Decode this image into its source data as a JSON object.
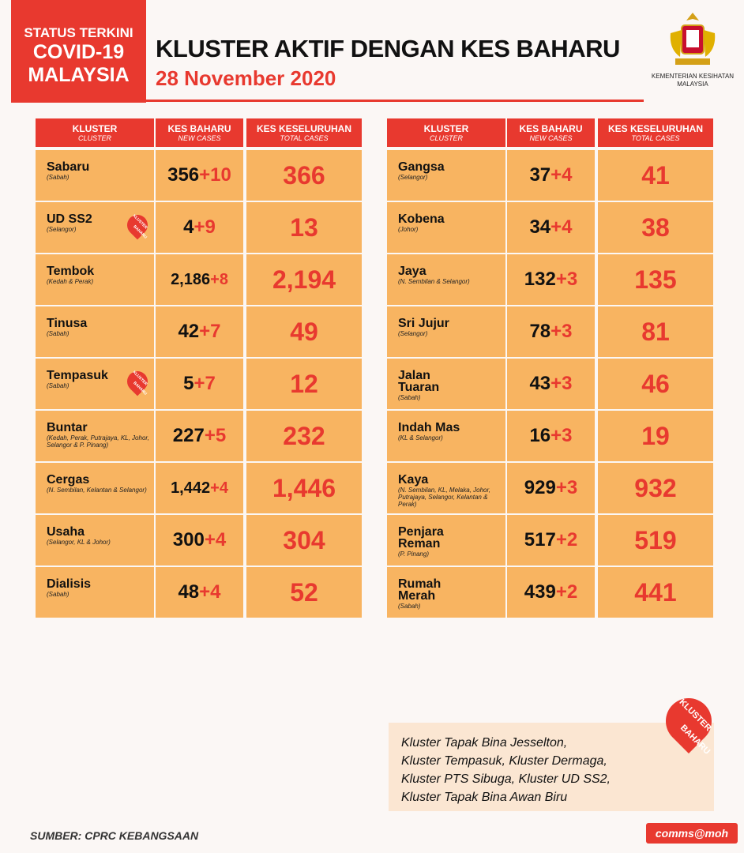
{
  "header": {
    "badge": [
      "STATUS TERKINI",
      "COVID-19",
      "MALAYSIA"
    ],
    "title": "KLUSTER AKTIF DENGAN KES BAHARU",
    "date": "28 November 2020",
    "ministry": [
      "KEMENTERIAN KESIHATAN",
      "MALAYSIA"
    ]
  },
  "columns": [
    {
      "main": "KLUSTER",
      "sub": "CLUSTER"
    },
    {
      "main": "KES BAHARU",
      "sub": "NEW CASES"
    },
    {
      "main": "KES KESELURUHAN",
      "sub": "TOTAL CASES"
    }
  ],
  "separator": "+",
  "badge_label": [
    "KLUSTER",
    "BAHARU"
  ],
  "tables": [
    {
      "rows": [
        {
          "name": "Sabaru",
          "location": "(Sabah)",
          "base": "356",
          "new": "10",
          "total": "366",
          "new_cluster": false
        },
        {
          "name": "UD SS2",
          "location": "(Selangor)",
          "base": "4",
          "new": "9",
          "total": "13",
          "new_cluster": true
        },
        {
          "name": "Tembok",
          "location": "(Kedah & Perak)",
          "base": "2,186",
          "new": "8",
          "total": "2,194",
          "new_cluster": false
        },
        {
          "name": "Tinusa",
          "location": "(Sabah)",
          "base": "42",
          "new": "7",
          "total": "49",
          "new_cluster": false
        },
        {
          "name": "Tempasuk",
          "location": "(Sabah)",
          "base": "5",
          "new": "7",
          "total": "12",
          "new_cluster": true
        },
        {
          "name": "Buntar",
          "location": "(Kedah, Perak, Putrajaya, KL, Johor, Selangor & P. Pinang)",
          "base": "227",
          "new": "5",
          "total": "232",
          "new_cluster": false
        },
        {
          "name": "Cergas",
          "location": "(N. Sembilan, Kelantan & Selangor)",
          "base": "1,442",
          "new": "4",
          "total": "1,446",
          "new_cluster": false
        },
        {
          "name": "Usaha",
          "location": "(Selangor, KL & Johor)",
          "base": "300",
          "new": "4",
          "total": "304",
          "new_cluster": false
        },
        {
          "name": "Dialisis",
          "location": "(Sabah)",
          "base": "48",
          "new": "4",
          "total": "52",
          "new_cluster": false
        }
      ]
    },
    {
      "rows": [
        {
          "name": "Gangsa",
          "location": "(Selangor)",
          "base": "37",
          "new": "4",
          "total": "41",
          "new_cluster": false
        },
        {
          "name": "Kobena",
          "location": "(Johor)",
          "base": "34",
          "new": "4",
          "total": "38",
          "new_cluster": false
        },
        {
          "name": "Jaya",
          "location": "(N. Sembilan & Selangor)",
          "base": "132",
          "new": "3",
          "total": "135",
          "new_cluster": false
        },
        {
          "name": "Sri Jujur",
          "location": "(Selangor)",
          "base": "78",
          "new": "3",
          "total": "81",
          "new_cluster": false
        },
        {
          "name": "Jalan Tuaran",
          "location": "(Sabah)",
          "base": "43",
          "new": "3",
          "total": "46",
          "new_cluster": false
        },
        {
          "name": "Indah Mas",
          "location": "(KL & Selangor)",
          "base": "16",
          "new": "3",
          "total": "19",
          "new_cluster": false
        },
        {
          "name": "Kaya",
          "location": "(N. Sembilan, KL, Melaka, Johor, Putrajaya, Selangor, Kelantan & Perak)",
          "base": "929",
          "new": "3",
          "total": "932",
          "new_cluster": false
        },
        {
          "name": "Penjara Reman",
          "location": "(P. Pinang)",
          "base": "517",
          "new": "2",
          "total": "519",
          "new_cluster": false
        },
        {
          "name": "Rumah Merah",
          "location": "(Sabah)",
          "base": "439",
          "new": "2",
          "total": "441",
          "new_cluster": false
        }
      ]
    }
  ],
  "note": [
    "Kluster Tapak Bina Jesselton,",
    "Kluster Tempasuk, Kluster Dermaga,",
    "Kluster PTS Sibuga, Kluster UD SS2,",
    "Kluster Tapak Bina Awan Biru"
  ],
  "footer": {
    "source": "SUMBER: CPRC KEBANGSAAN",
    "watermark": "comms@moh"
  }
}
